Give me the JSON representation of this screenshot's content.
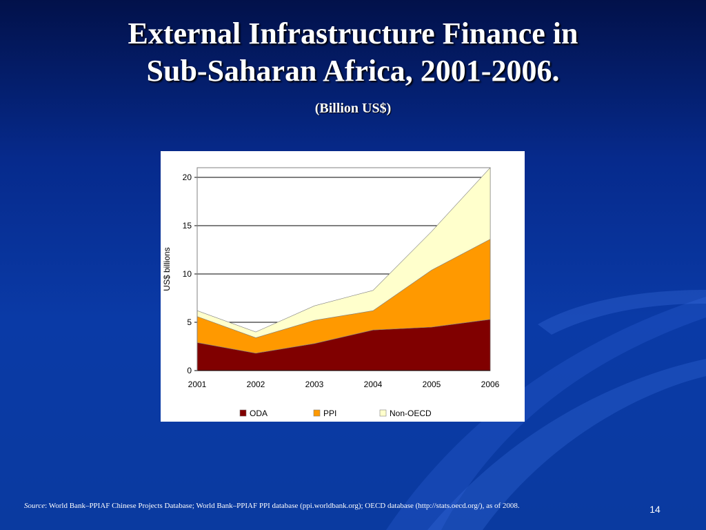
{
  "slide": {
    "title_line1": "External Infrastructure Finance in",
    "title_line2": "Sub-Saharan Africa, 2001-2006.",
    "subtitle": "(Billion US$)",
    "source_label": "Source",
    "source_text": ": World Bank–PPIAF Chinese Projects Database; World Bank–PPIAF PPI database (ppi.worldbank.org); OECD database (http://stats.oecd.org/), as of 2008.",
    "page_number": "14"
  },
  "colors": {
    "ODA": "#800000",
    "PPI": "#ff9900",
    "Non-OECD": "#ffffcc"
  },
  "chart_data": {
    "type": "area",
    "stacked": true,
    "title": "",
    "xlabel": "",
    "ylabel": "US$ billions",
    "x": [
      2001,
      2002,
      2003,
      2004,
      2005,
      2006
    ],
    "x_tick_labels": [
      "2001",
      "2002",
      "2003",
      "2004",
      "2005",
      "2006"
    ],
    "ylim": [
      0,
      21
    ],
    "y_ticks": [
      0,
      5,
      10,
      15,
      20
    ],
    "y_tick_labels": [
      "0",
      "5",
      "10",
      "15",
      "20"
    ],
    "grid": true,
    "legend_position": "bottom",
    "series": [
      {
        "name": "ODA",
        "values": [
          2.9,
          1.8,
          2.8,
          4.2,
          4.5,
          5.3
        ]
      },
      {
        "name": "PPI",
        "values": [
          2.7,
          1.6,
          2.4,
          2.0,
          5.9,
          8.3
        ]
      },
      {
        "name": "Non-OECD",
        "values": [
          0.6,
          0.6,
          1.5,
          2.1,
          4.0,
          7.6
        ]
      }
    ]
  }
}
